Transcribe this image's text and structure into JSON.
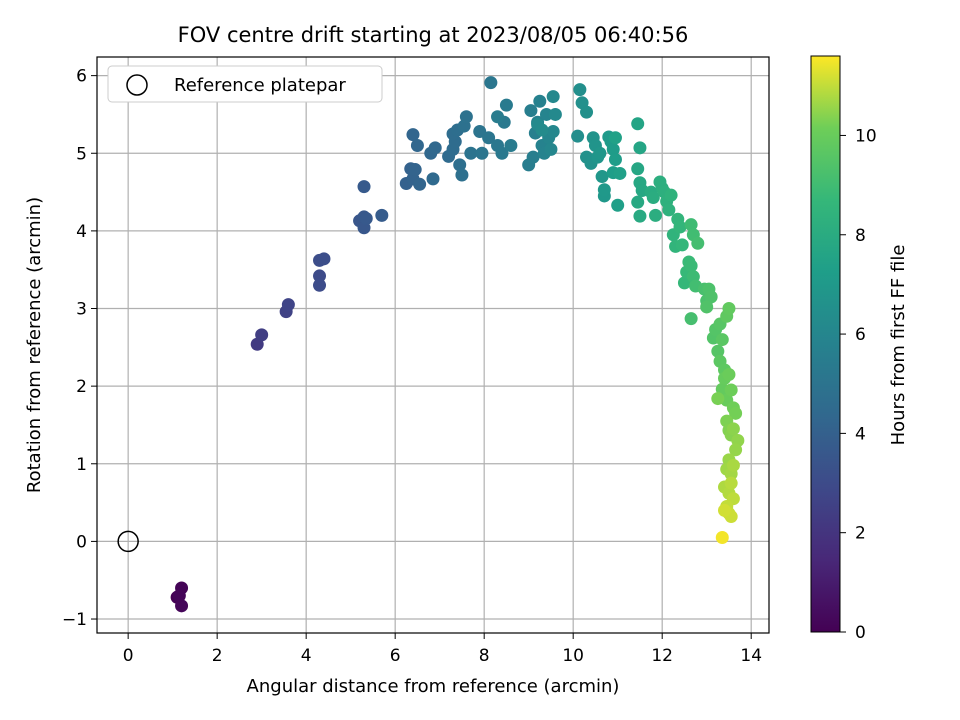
{
  "chart_data": {
    "type": "scatter",
    "title": "FOV centre drift starting at 2023/08/05 06:40:56",
    "xlabel": "Angular distance from reference (arcmin)",
    "ylabel": "Rotation from reference (arcmin)",
    "xlim": [
      -0.7,
      14.4
    ],
    "ylim": [
      -1.18,
      6.24
    ],
    "xticks": [
      0,
      2,
      4,
      6,
      8,
      10,
      12,
      14
    ],
    "xtick_labels": [
      "0",
      "2",
      "4",
      "6",
      "8",
      "10",
      "12",
      "14"
    ],
    "yticks": [
      -1,
      0,
      1,
      2,
      3,
      4,
      5,
      6
    ],
    "ytick_labels": [
      "−1",
      "0",
      "1",
      "2",
      "3",
      "4",
      "5",
      "6"
    ],
    "grid": true,
    "legend": {
      "position": "top-left",
      "entries": [
        "Reference platepar"
      ]
    },
    "reference_point": {
      "x": 0,
      "y": 0,
      "label": "Reference platepar"
    },
    "colorbar": {
      "label": "Hours from first FF file",
      "range": [
        0,
        11.6
      ],
      "ticks": [
        0,
        2,
        4,
        6,
        8,
        10
      ],
      "tick_labels": [
        "0",
        "2",
        "4",
        "6",
        "8",
        "10"
      ],
      "colormap": "viridis"
    },
    "points": [
      [
        1.1,
        -0.72,
        0.0
      ],
      [
        1.2,
        -0.6,
        0.1
      ],
      [
        1.2,
        -0.83,
        0.2
      ],
      [
        1.15,
        -0.7,
        0.15
      ],
      [
        2.9,
        2.54,
        2.3
      ],
      [
        3.0,
        2.66,
        2.4
      ],
      [
        3.55,
        2.96,
        2.6
      ],
      [
        3.6,
        3.05,
        2.7
      ],
      [
        4.3,
        3.42,
        3.0
      ],
      [
        4.3,
        3.3,
        3.05
      ],
      [
        4.3,
        3.62,
        3.1
      ],
      [
        4.4,
        3.64,
        3.15
      ],
      [
        5.2,
        4.13,
        3.5
      ],
      [
        5.3,
        4.04,
        3.55
      ],
      [
        5.3,
        4.18,
        3.6
      ],
      [
        5.35,
        4.16,
        3.65
      ],
      [
        5.3,
        4.57,
        3.7
      ],
      [
        5.7,
        4.2,
        3.8
      ],
      [
        6.25,
        4.61,
        4.0
      ],
      [
        6.35,
        4.8,
        4.05
      ],
      [
        6.4,
        4.67,
        4.1
      ],
      [
        6.45,
        4.79,
        4.15
      ],
      [
        6.55,
        4.6,
        4.2
      ],
      [
        6.4,
        5.24,
        4.25
      ],
      [
        6.5,
        5.1,
        4.3
      ],
      [
        6.8,
        5.0,
        4.35
      ],
      [
        6.9,
        5.07,
        4.4
      ],
      [
        6.85,
        4.67,
        4.45
      ],
      [
        7.2,
        4.96,
        4.5
      ],
      [
        7.3,
        5.05,
        4.55
      ],
      [
        7.35,
        5.15,
        4.6
      ],
      [
        7.3,
        5.25,
        4.65
      ],
      [
        7.4,
        5.3,
        4.7
      ],
      [
        7.45,
        4.85,
        4.75
      ],
      [
        7.5,
        4.72,
        4.8
      ],
      [
        7.55,
        5.35,
        4.85
      ],
      [
        7.6,
        5.47,
        4.9
      ],
      [
        7.7,
        5.0,
        4.95
      ],
      [
        7.9,
        5.28,
        5.0
      ],
      [
        7.95,
        5.0,
        5.05
      ],
      [
        8.1,
        5.2,
        5.1
      ],
      [
        8.15,
        5.91,
        5.15
      ],
      [
        8.3,
        5.1,
        5.2
      ],
      [
        8.4,
        5.0,
        5.25
      ],
      [
        8.45,
        5.4,
        5.3
      ],
      [
        8.5,
        5.62,
        5.35
      ],
      [
        8.6,
        5.1,
        5.4
      ],
      [
        8.3,
        5.47,
        5.45
      ],
      [
        9.0,
        4.85,
        5.5
      ],
      [
        9.05,
        5.55,
        5.55
      ],
      [
        9.1,
        4.95,
        5.6
      ],
      [
        9.15,
        5.26,
        5.65
      ],
      [
        9.2,
        5.4,
        5.7
      ],
      [
        9.25,
        5.67,
        5.75
      ],
      [
        9.3,
        5.1,
        5.8
      ],
      [
        9.35,
        5.0,
        5.85
      ],
      [
        9.4,
        5.5,
        5.9
      ],
      [
        9.45,
        5.2,
        5.95
      ],
      [
        9.5,
        5.05,
        6.0
      ],
      [
        9.55,
        5.28,
        6.05
      ],
      [
        9.55,
        5.73,
        6.1
      ],
      [
        9.6,
        5.5,
        6.15
      ],
      [
        9.2,
        5.37,
        6.2
      ],
      [
        9.3,
        5.3,
        6.25
      ],
      [
        10.1,
        5.22,
        6.4
      ],
      [
        10.15,
        5.82,
        6.45
      ],
      [
        10.2,
        5.65,
        6.5
      ],
      [
        10.3,
        5.53,
        6.55
      ],
      [
        10.3,
        4.95,
        6.6
      ],
      [
        10.4,
        4.87,
        6.65
      ],
      [
        10.45,
        5.2,
        6.7
      ],
      [
        10.5,
        5.1,
        6.75
      ],
      [
        10.55,
        4.95,
        6.8
      ],
      [
        10.6,
        5.0,
        6.85
      ],
      [
        10.65,
        4.7,
        6.9
      ],
      [
        10.7,
        4.45,
        6.95
      ],
      [
        10.7,
        4.53,
        7.0
      ],
      [
        10.8,
        5.21,
        7.05
      ],
      [
        10.85,
        5.15,
        7.1
      ],
      [
        10.9,
        5.05,
        7.15
      ],
      [
        10.95,
        4.92,
        7.2
      ],
      [
        10.9,
        4.75,
        7.25
      ],
      [
        11.0,
        4.33,
        7.3
      ],
      [
        11.05,
        4.74,
        7.35
      ],
      [
        10.95,
        5.2,
        7.4
      ],
      [
        11.45,
        5.38,
        7.6
      ],
      [
        11.5,
        5.07,
        7.65
      ],
      [
        11.45,
        4.8,
        7.7
      ],
      [
        11.5,
        4.62,
        7.75
      ],
      [
        11.55,
        4.52,
        7.8
      ],
      [
        11.45,
        4.37,
        7.85
      ],
      [
        11.5,
        4.19,
        7.9
      ],
      [
        11.75,
        4.5,
        8.0
      ],
      [
        11.8,
        4.43,
        8.05
      ],
      [
        11.85,
        4.2,
        8.1
      ],
      [
        11.95,
        4.63,
        8.15
      ],
      [
        12.0,
        4.55,
        8.2
      ],
      [
        12.05,
        4.5,
        8.25
      ],
      [
        12.1,
        4.38,
        8.3
      ],
      [
        12.15,
        4.27,
        8.35
      ],
      [
        12.2,
        4.46,
        8.4
      ],
      [
        12.25,
        3.95,
        8.45
      ],
      [
        12.3,
        3.8,
        8.5
      ],
      [
        12.35,
        4.15,
        8.55
      ],
      [
        12.4,
        4.05,
        8.6
      ],
      [
        12.45,
        3.82,
        8.65
      ],
      [
        12.5,
        3.33,
        8.7
      ],
      [
        12.55,
        3.47,
        8.75
      ],
      [
        12.6,
        3.6,
        8.8
      ],
      [
        12.65,
        3.55,
        8.85
      ],
      [
        12.7,
        3.41,
        8.9
      ],
      [
        12.65,
        4.08,
        8.95
      ],
      [
        12.7,
        3.95,
        9.0
      ],
      [
        12.75,
        3.29,
        9.05
      ],
      [
        12.8,
        3.84,
        9.1
      ],
      [
        12.65,
        2.87,
        9.15
      ],
      [
        12.95,
        3.25,
        9.2
      ],
      [
        13.0,
        3.1,
        9.25
      ],
      [
        13.05,
        3.25,
        9.3
      ],
      [
        13.1,
        3.15,
        9.35
      ],
      [
        13.0,
        3.02,
        9.4
      ],
      [
        13.15,
        2.62,
        9.45
      ],
      [
        13.2,
        2.73,
        9.5
      ],
      [
        13.25,
        2.45,
        9.55
      ],
      [
        13.3,
        2.8,
        9.6
      ],
      [
        13.35,
        2.6,
        9.65
      ],
      [
        13.3,
        2.32,
        9.7
      ],
      [
        13.4,
        2.21,
        9.75
      ],
      [
        13.45,
        2.9,
        9.8
      ],
      [
        13.5,
        3.0,
        9.85
      ],
      [
        13.35,
        1.96,
        9.9
      ],
      [
        13.4,
        2.1,
        9.95
      ],
      [
        13.45,
        1.82,
        10.0
      ],
      [
        13.5,
        2.15,
        10.05
      ],
      [
        13.55,
        1.95,
        10.1
      ],
      [
        13.6,
        1.72,
        10.15
      ],
      [
        13.65,
        1.65,
        10.2
      ],
      [
        13.25,
        1.84,
        10.25
      ],
      [
        13.45,
        1.55,
        10.3
      ],
      [
        13.5,
        1.43,
        10.35
      ],
      [
        13.55,
        1.37,
        10.4
      ],
      [
        13.6,
        1.45,
        10.45
      ],
      [
        13.7,
        1.3,
        10.5
      ],
      [
        13.65,
        1.18,
        10.55
      ],
      [
        13.5,
        1.05,
        10.6
      ],
      [
        13.45,
        0.93,
        10.65
      ],
      [
        13.55,
        0.87,
        10.7
      ],
      [
        13.6,
        0.98,
        10.75
      ],
      [
        13.4,
        0.7,
        10.8
      ],
      [
        13.5,
        0.62,
        10.85
      ],
      [
        13.55,
        0.75,
        10.9
      ],
      [
        13.6,
        0.55,
        10.95
      ],
      [
        13.45,
        0.45,
        11.0
      ],
      [
        13.5,
        0.36,
        11.05
      ],
      [
        13.55,
        0.32,
        11.1
      ],
      [
        13.4,
        0.4,
        11.15
      ],
      [
        13.35,
        0.05,
        11.5
      ]
    ]
  }
}
